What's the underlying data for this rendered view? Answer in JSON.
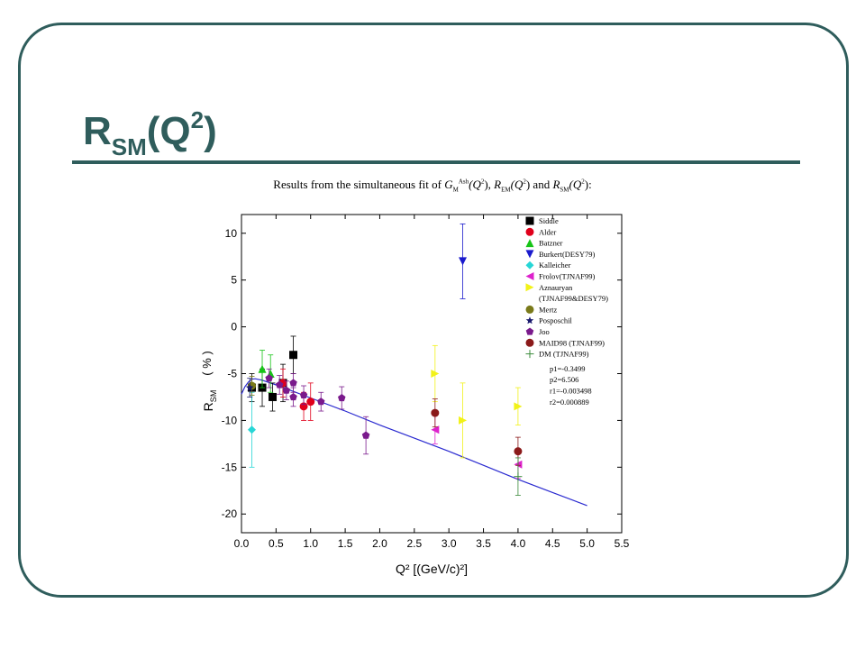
{
  "slide": {
    "title_main": "R",
    "title_sub": "SM",
    "title_paren_open": "(Q",
    "title_sup": "2",
    "title_paren_close": ")",
    "frame_color": "#2f5d5c"
  },
  "caption": {
    "prefix": "Results from the simultaneous fit of ",
    "g": "G",
    "g_sub": "M",
    "g_sup": "Ash",
    "q1": "(Q",
    "q_sup": "2",
    "q_close": "), ",
    "r_em": "R",
    "r_em_sub": "EM",
    "q2": "(Q",
    "q2_close": ") and ",
    "r_sm": "R",
    "r_sm_sub": "SM",
    "q3": "(Q",
    "q3_close": "):"
  },
  "chart_data": {
    "type": "scatter",
    "xlabel": "Q²  [(GeV/c)²]",
    "ylabel": "R_SM",
    "ylabel_main": "R",
    "ylabel_sub": "SM",
    "ylabel_unit": "( % )",
    "xlim": [
      0,
      5.5
    ],
    "ylim": [
      -22,
      12
    ],
    "x_ticks": [
      0.0,
      0.5,
      1.0,
      1.5,
      2.0,
      2.5,
      3.0,
      3.5,
      4.0,
      4.5,
      5.0,
      5.5
    ],
    "x_tick_labels": [
      "0.0",
      "0.5",
      "1.0",
      "1.5",
      "2.0",
      "2.5",
      "3.0",
      "3.5",
      "4.0",
      "4.5",
      "5.0",
      "5.5"
    ],
    "y_ticks": [
      10,
      5,
      0,
      -5,
      -10,
      -15,
      -20
    ],
    "y_tick_labels": [
      "10",
      "5",
      "0",
      "-5",
      "-10",
      "-15",
      "-20"
    ],
    "grid": false,
    "legend_position": "top-right",
    "series": [
      {
        "name": "Siddle",
        "color": "#000000",
        "marker": "square",
        "points": [
          [
            0.15,
            -6.5,
            1.5
          ],
          [
            0.3,
            -6.5,
            2
          ],
          [
            0.45,
            -7.5,
            1.5
          ],
          [
            0.6,
            -6,
            2
          ],
          [
            0.75,
            -3,
            2
          ]
        ]
      },
      {
        "name": "Alder",
        "color": "#e0001b",
        "marker": "circle",
        "points": [
          [
            0.6,
            -6,
            1.5
          ],
          [
            0.9,
            -8.5,
            1.5
          ],
          [
            1.0,
            -8,
            2
          ]
        ]
      },
      {
        "name": "Batzner",
        "color": "#17c417",
        "marker": "triangle-up",
        "points": [
          [
            0.3,
            -4.5,
            2
          ],
          [
            0.42,
            -5,
            2
          ]
        ]
      },
      {
        "name": "Burkert(DESY79)",
        "color": "#1a1acd",
        "marker": "triangle-down",
        "points": [
          [
            3.2,
            7,
            4
          ]
        ]
      },
      {
        "name": "Kalleicher",
        "color": "#27d6d6",
        "marker": "diamond",
        "points": [
          [
            0.15,
            -11,
            4
          ]
        ]
      },
      {
        "name": "Frolov(TJNAF99)",
        "color": "#dd22cc",
        "marker": "triangle-left",
        "points": [
          [
            2.8,
            -11,
            1.5
          ],
          [
            4.0,
            -14.7,
            1.5
          ]
        ]
      },
      {
        "name": "Aznauryan (TJNAF99&DESY79)",
        "color": "#f2f218",
        "marker": "triangle-right",
        "points": [
          [
            2.8,
            -5,
            3
          ],
          [
            3.2,
            -10,
            4
          ],
          [
            4.0,
            -8.5,
            2
          ]
        ]
      },
      {
        "name": "Mertz",
        "color": "#7a7a1a",
        "marker": "circle",
        "points": [
          [
            0.15,
            -6.3,
            1
          ]
        ]
      },
      {
        "name": "Posposchil",
        "color": "#1a1a6e",
        "marker": "star",
        "points": [
          [
            0.12,
            -6.5,
            1
          ]
        ]
      },
      {
        "name": "Joo",
        "color": "#7a1a8c",
        "marker": "pentagon",
        "points": [
          [
            0.4,
            -5.5,
            1
          ],
          [
            0.55,
            -6.2,
            1
          ],
          [
            0.65,
            -6.8,
            1
          ],
          [
            0.75,
            -7.5,
            1
          ],
          [
            0.75,
            -6,
            1
          ],
          [
            0.9,
            -7.3,
            1
          ],
          [
            1.15,
            -8,
            1
          ],
          [
            1.45,
            -7.6,
            1.2
          ],
          [
            1.8,
            -11.6,
            2
          ]
        ]
      },
      {
        "name": "MAID98 (TJNAF99)",
        "color": "#8b1a1a",
        "marker": "circle",
        "points": [
          [
            2.8,
            -9.2,
            1.5
          ],
          [
            4.0,
            -13.3,
            1.5
          ]
        ]
      },
      {
        "name": "DM (TJNAF99)",
        "color": "#3a8a3a",
        "marker": "plus",
        "points": [
          [
            4.0,
            -16,
            2
          ]
        ]
      }
    ],
    "fit_line": {
      "color": "#2a2ad0",
      "params": [
        "p1=-0.3499",
        "p2=6.506",
        "r1=-0.003498",
        "r2=0.000889"
      ],
      "x": [
        0.0,
        0.05,
        0.1,
        0.15,
        0.2,
        0.3,
        0.5,
        0.75,
        1.0,
        1.5,
        2.0,
        2.5,
        3.0,
        3.5,
        4.0,
        4.5,
        5.0
      ],
      "y": [
        -7.2,
        -6.4,
        -5.9,
        -5.6,
        -5.55,
        -5.7,
        -6.2,
        -6.9,
        -7.6,
        -9.0,
        -10.5,
        -11.9,
        -13.3,
        -14.8,
        -16.3,
        -17.7,
        -19.1
      ]
    }
  }
}
